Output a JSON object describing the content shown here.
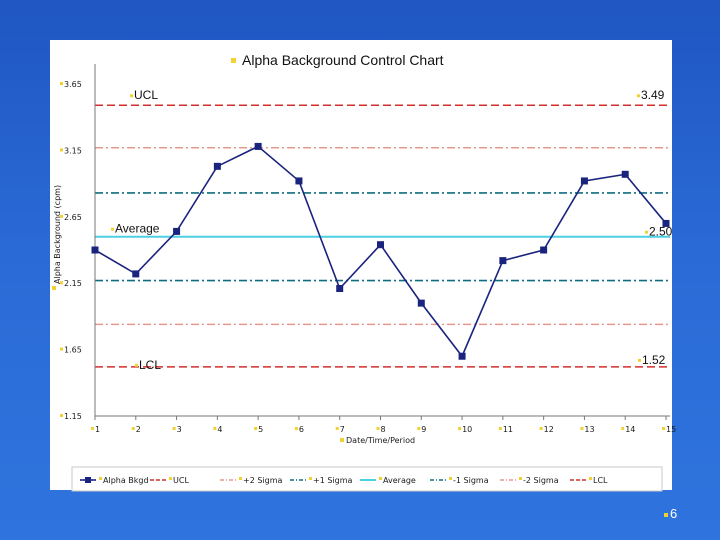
{
  "page_number": "6",
  "chart_data": {
    "type": "line",
    "title": "Alpha Background Control Chart",
    "xlabel": "Date/Time/Period",
    "ylabel": "Alpha Background (cpm)",
    "x": [
      1,
      2,
      3,
      4,
      5,
      6,
      7,
      8,
      9,
      10,
      11,
      12,
      13,
      14,
      15
    ],
    "ylim": [
      1.15,
      3.65
    ],
    "yticks": [
      1.15,
      1.65,
      2.15,
      2.65,
      3.15,
      3.65
    ],
    "ytick_labels": [
      "1.15",
      "1.65",
      "2.15",
      "2.65",
      "3.15",
      "3.65"
    ],
    "series": [
      {
        "name": "Alpha Bkgd",
        "values": [
          2.4,
          2.22,
          2.54,
          3.03,
          3.18,
          2.92,
          2.11,
          2.44,
          2.0,
          1.6,
          2.32,
          2.4,
          2.92,
          2.97,
          2.6
        ],
        "color": "#1a237e",
        "style": "line-markers"
      }
    ],
    "control_lines": [
      {
        "name": "UCL",
        "value": 3.49,
        "color": "#d32f2f",
        "style": "dashed"
      },
      {
        "name": "+2 Sigma",
        "value": 3.17,
        "color": "#e8998e",
        "style": "dashdot"
      },
      {
        "name": "+1 Sigma",
        "value": 2.83,
        "color": "#0f6f80",
        "style": "dashdot"
      },
      {
        "name": "Average",
        "value": 2.5,
        "color": "#4dd0e1",
        "style": "solid"
      },
      {
        "name": "-1 Sigma",
        "value": 2.17,
        "color": "#0f6f80",
        "style": "dashdot"
      },
      {
        "name": "-2 Sigma",
        "value": 1.84,
        "color": "#e8998e",
        "style": "dashdot"
      },
      {
        "name": "LCL",
        "value": 1.52,
        "color": "#d32f2f",
        "style": "dashed"
      }
    ],
    "annotations": [
      {
        "text": "UCL",
        "anchor": "ucl-left"
      },
      {
        "text": "3.49",
        "anchor": "ucl-right"
      },
      {
        "text": "Average",
        "anchor": "avg-left"
      },
      {
        "text": "2.50",
        "anchor": "avg-right"
      },
      {
        "text": "LCL",
        "anchor": "lcl-left"
      },
      {
        "text": "1.52",
        "anchor": "lcl-right"
      }
    ],
    "legend_placement": "bottom",
    "legend": [
      "Alpha Bkgd",
      "UCL",
      "+2 Sigma",
      "+1 Sigma",
      "Average",
      "-1 Sigma",
      "-2 Sigma",
      "LCL"
    ],
    "grid": false
  }
}
